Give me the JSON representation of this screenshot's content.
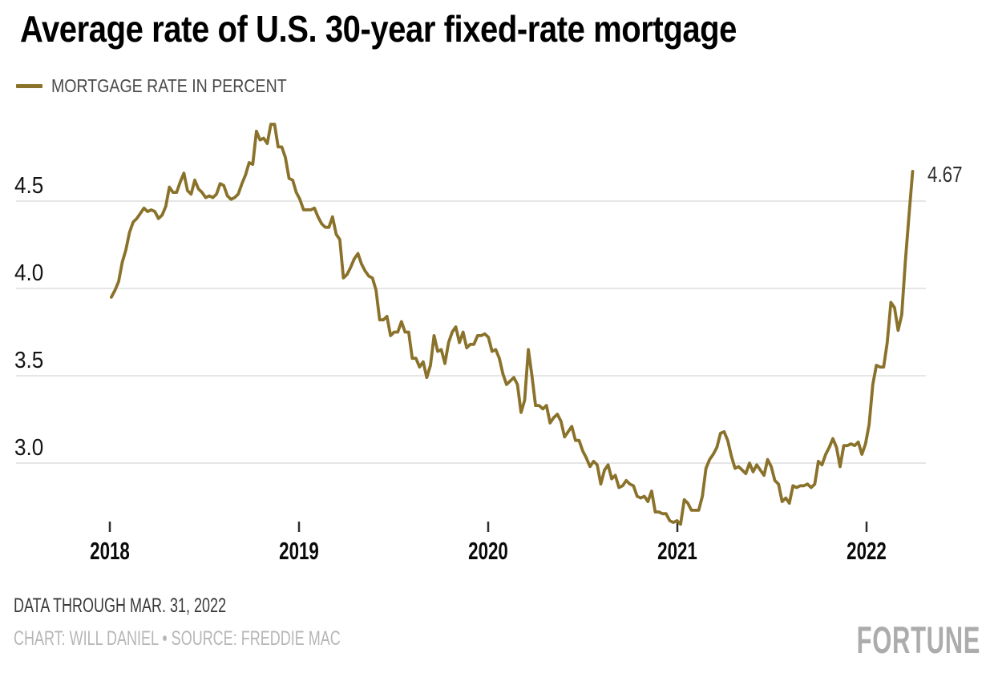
{
  "header": {
    "title": "Average rate of U.S. 30-year fixed-rate mortgage"
  },
  "legend": {
    "label": "MORTGAGE RATE IN PERCENT"
  },
  "footer": {
    "note": "DATA THROUGH MAR. 31, 2022",
    "credit": "CHART: WILL DANIEL • SOURCE: FREDDIE MAC",
    "brand": "FORTUNE"
  },
  "colors": {
    "line": "#8a722b",
    "grid": "#d8d8d8",
    "tick": "#2e2e2e",
    "title_text": "#000000",
    "axis_label": "#141414",
    "year_label": "#0a0a0a",
    "legend_text": "#4a4a4a",
    "note_text": "#3a3a3a",
    "credit_text": "#b6b6b6",
    "brand_text": "#acacac",
    "annotation_text": "#303030",
    "background": "#ffffff"
  },
  "chart_data": {
    "type": "line",
    "title": "Average rate of U.S. 30-year fixed-rate mortgage",
    "series_name": "MORTGAGE RATE IN PERCENT",
    "xlabel": "",
    "ylabel": "Mortgage rate in percent",
    "x_unit": "weekly observations",
    "x_start_decimal_year": 2018.0082,
    "x_step_days": 7,
    "xlim": [
      2017.5,
      2022.33
    ],
    "ylim": [
      2.55,
      5.0
    ],
    "grid": "horizontal",
    "legend_position": "top-left",
    "y_ticks": [
      4.5,
      4.0,
      3.5,
      3.0
    ],
    "y_tick_labels": [
      "4.5",
      "4.0",
      "3.5",
      "3.0"
    ],
    "x_ticks": [
      2018,
      2019,
      2020,
      2021,
      2022
    ],
    "x_tick_labels": [
      "2018",
      "2019",
      "2020",
      "2021",
      "2022"
    ],
    "end_label": "4.67",
    "values": [
      3.95,
      3.99,
      4.04,
      4.15,
      4.22,
      4.32,
      4.38,
      4.4,
      4.43,
      4.46,
      4.44,
      4.45,
      4.44,
      4.4,
      4.42,
      4.47,
      4.58,
      4.55,
      4.55,
      4.61,
      4.66,
      4.56,
      4.54,
      4.62,
      4.57,
      4.55,
      4.52,
      4.53,
      4.52,
      4.54,
      4.6,
      4.59,
      4.53,
      4.51,
      4.52,
      4.54,
      4.6,
      4.65,
      4.72,
      4.71,
      4.9,
      4.85,
      4.86,
      4.83,
      4.94,
      4.94,
      4.81,
      4.81,
      4.75,
      4.63,
      4.62,
      4.55,
      4.51,
      4.45,
      4.45,
      4.45,
      4.46,
      4.41,
      4.37,
      4.35,
      4.35,
      4.41,
      4.31,
      4.28,
      4.06,
      4.08,
      4.12,
      4.17,
      4.2,
      4.14,
      4.1,
      4.07,
      4.06,
      3.99,
      3.82,
      3.82,
      3.84,
      3.73,
      3.75,
      3.75,
      3.81,
      3.75,
      3.75,
      3.6,
      3.6,
      3.55,
      3.58,
      3.49,
      3.56,
      3.73,
      3.64,
      3.65,
      3.57,
      3.69,
      3.75,
      3.78,
      3.69,
      3.75,
      3.66,
      3.68,
      3.68,
      3.73,
      3.73,
      3.74,
      3.72,
      3.64,
      3.65,
      3.6,
      3.51,
      3.45,
      3.47,
      3.49,
      3.45,
      3.29,
      3.36,
      3.65,
      3.5,
      3.33,
      3.33,
      3.31,
      3.33,
      3.23,
      3.26,
      3.28,
      3.24,
      3.15,
      3.18,
      3.21,
      3.13,
      3.13,
      3.07,
      3.03,
      2.98,
      3.01,
      2.99,
      2.88,
      2.96,
      2.99,
      2.91,
      2.93,
      2.86,
      2.87,
      2.9,
      2.88,
      2.87,
      2.81,
      2.8,
      2.81,
      2.78,
      2.84,
      2.72,
      2.72,
      2.71,
      2.71,
      2.67,
      2.66,
      2.67,
      2.65,
      2.79,
      2.77,
      2.73,
      2.73,
      2.73,
      2.81,
      2.97,
      3.02,
      3.05,
      3.09,
      3.17,
      3.18,
      3.13,
      3.04,
      2.97,
      2.98,
      2.96,
      2.94,
      3.0,
      2.95,
      2.99,
      2.96,
      2.93,
      3.02,
      2.98,
      2.9,
      2.88,
      2.78,
      2.8,
      2.77,
      2.87,
      2.86,
      2.87,
      2.87,
      2.88,
      2.86,
      2.88,
      3.01,
      2.99,
      3.05,
      3.09,
      3.14,
      3.09,
      2.98,
      3.1,
      3.1,
      3.11,
      3.1,
      3.12,
      3.05,
      3.11,
      3.22,
      3.45,
      3.56,
      3.55,
      3.55,
      3.69,
      3.92,
      3.89,
      3.76,
      3.85,
      4.16,
      4.42,
      4.67
    ]
  }
}
